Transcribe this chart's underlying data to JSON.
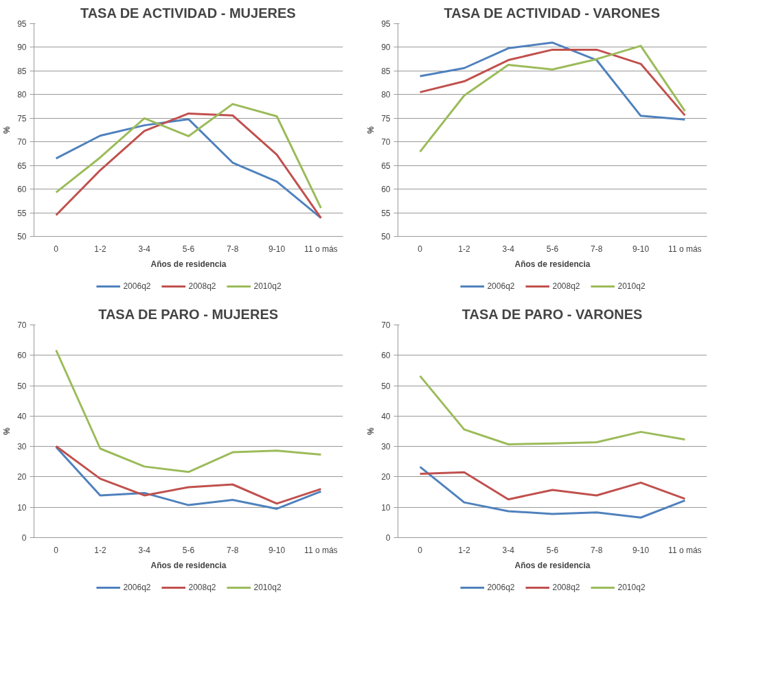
{
  "chart_data": [
    {
      "type": "line",
      "title": "TASA DE ACTIVIDAD - MUJERES",
      "xlabel": "Años de residencia",
      "ylabel": "%",
      "categories": [
        "0",
        "1-2",
        "3-4",
        "5-6",
        "7-8",
        "9-10",
        "11 o más"
      ],
      "ylim": [
        50,
        95
      ],
      "yticks": [
        50,
        55,
        60,
        65,
        70,
        75,
        80,
        85,
        90,
        95
      ],
      "grid": "y",
      "legend": "bottom",
      "series": [
        {
          "name": "2006q2",
          "color": "#4f81bd",
          "values": [
            66.5,
            71.3,
            73.5,
            74.8,
            65.6,
            61.6,
            53.9
          ]
        },
        {
          "name": "2008q2",
          "color": "#c0504d",
          "values": [
            54.5,
            64.0,
            72.3,
            76.0,
            75.6,
            67.3,
            53.9
          ]
        },
        {
          "name": "2010q2",
          "color": "#9bbb59",
          "values": [
            59.3,
            66.7,
            75.0,
            71.2,
            78.0,
            75.4,
            56.0
          ]
        }
      ]
    },
    {
      "type": "line",
      "title": "TASA DE ACTIVIDAD - VARONES",
      "xlabel": "Años de residencia",
      "ylabel": "%",
      "categories": [
        "0",
        "1-2",
        "3-4",
        "5-6",
        "7-8",
        "9-10",
        "11 o más"
      ],
      "ylim": [
        50,
        95
      ],
      "yticks": [
        50,
        55,
        60,
        65,
        70,
        75,
        80,
        85,
        90,
        95
      ],
      "grid": "y",
      "legend": "bottom",
      "series": [
        {
          "name": "2006q2",
          "color": "#4f81bd",
          "values": [
            83.9,
            85.6,
            89.8,
            91.0,
            87.3,
            75.5,
            74.7
          ]
        },
        {
          "name": "2008q2",
          "color": "#c0504d",
          "values": [
            80.5,
            82.8,
            87.3,
            89.5,
            89.5,
            86.5,
            75.6
          ]
        },
        {
          "name": "2010q2",
          "color": "#9bbb59",
          "values": [
            67.9,
            79.8,
            86.3,
            85.3,
            87.5,
            90.3,
            76.5
          ]
        }
      ]
    },
    {
      "type": "line",
      "title": "TASA DE PARO - MUJERES",
      "xlabel": "Años de residencia",
      "ylabel": "%",
      "categories": [
        "0",
        "1-2",
        "3-4",
        "5-6",
        "7-8",
        "9-10",
        "11 o más"
      ],
      "ylim": [
        0,
        70
      ],
      "yticks": [
        0,
        10,
        20,
        30,
        40,
        50,
        60,
        70
      ],
      "grid": "y",
      "legend": "bottom",
      "series": [
        {
          "name": "2006q2",
          "color": "#4f81bd",
          "values": [
            29.8,
            13.9,
            14.7,
            10.7,
            12.4,
            9.5,
            15.2
          ]
        },
        {
          "name": "2008q2",
          "color": "#c0504d",
          "values": [
            30.1,
            19.4,
            13.9,
            16.6,
            17.5,
            11.2,
            16.0
          ]
        },
        {
          "name": "2010q2",
          "color": "#9bbb59",
          "values": [
            61.7,
            29.3,
            23.4,
            21.6,
            28.1,
            28.6,
            27.3
          ]
        }
      ]
    },
    {
      "type": "line",
      "title": "TASA DE PARO - VARONES",
      "xlabel": "Años de residencia",
      "ylabel": "%",
      "categories": [
        "0",
        "1-2",
        "3-4",
        "5-6",
        "7-8",
        "9-10",
        "11 o más"
      ],
      "ylim": [
        0,
        70
      ],
      "yticks": [
        0,
        10,
        20,
        30,
        40,
        50,
        60,
        70
      ],
      "grid": "y",
      "legend": "bottom",
      "series": [
        {
          "name": "2006q2",
          "color": "#4f81bd",
          "values": [
            23.3,
            11.6,
            8.7,
            7.8,
            8.3,
            6.6,
            12.2
          ]
        },
        {
          "name": "2008q2",
          "color": "#c0504d",
          "values": [
            21.0,
            21.5,
            12.6,
            15.7,
            13.9,
            18.1,
            12.8
          ]
        },
        {
          "name": "2010q2",
          "color": "#9bbb59",
          "values": [
            53.2,
            35.6,
            30.7,
            31.0,
            31.4,
            34.8,
            32.3
          ]
        }
      ]
    }
  ]
}
